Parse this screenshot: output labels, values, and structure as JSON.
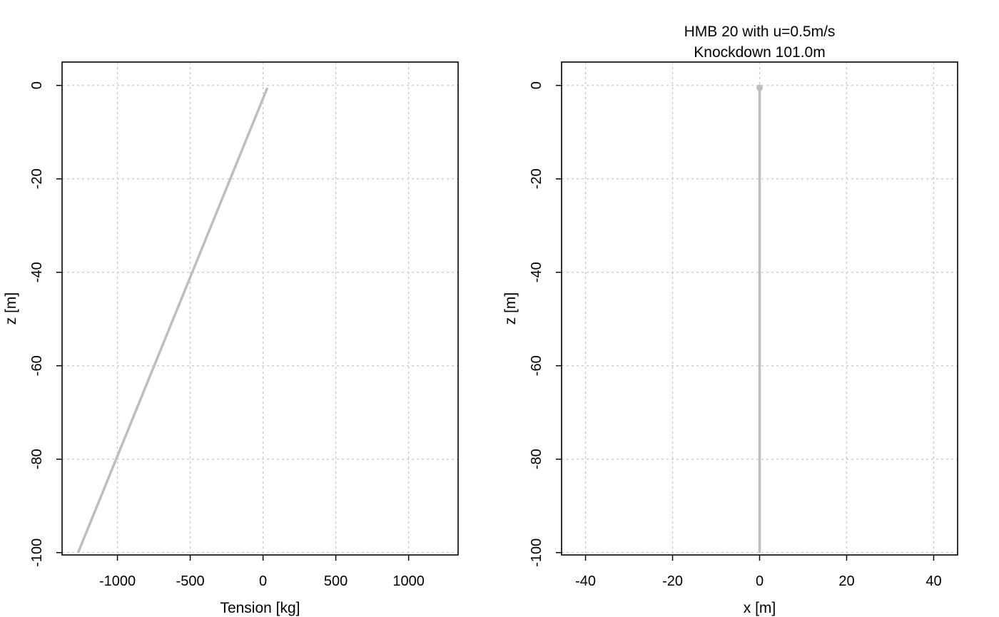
{
  "chart_data": [
    {
      "type": "line",
      "title": "",
      "xlabel": "Tension [kg]",
      "ylabel": "z [m]",
      "xlim": [
        -1380,
        1340
      ],
      "ylim": [
        -100.5,
        5
      ],
      "xticks": [
        -1000,
        -500,
        0,
        500,
        1000
      ],
      "xtick_labels": [
        "-1000",
        "-500",
        "0",
        "500",
        "1000"
      ],
      "yticks": [
        0,
        -20,
        -40,
        -60,
        -80,
        -100
      ],
      "ytick_labels": [
        "0",
        "-20",
        "-40",
        "-60",
        "-80",
        "-100"
      ],
      "grid": true,
      "series": [
        {
          "color": "#bebebe",
          "x": [
            30,
            -1270
          ],
          "y": [
            -0.5,
            -100
          ]
        }
      ]
    },
    {
      "type": "line",
      "title": "HMB 20 with u=0.5m/s\nKnockdown 101.0m",
      "title_lines": [
        "HMB 20 with u=0.5m/s",
        "Knockdown 101.0m"
      ],
      "xlabel": "x [m]",
      "ylabel": "z [m]",
      "xlim": [
        -45.5,
        45.5
      ],
      "ylim": [
        -100.5,
        5
      ],
      "xticks": [
        -40,
        -20,
        0,
        20,
        40
      ],
      "xtick_labels": [
        "-40",
        "-20",
        "0",
        "20",
        "40"
      ],
      "yticks": [
        0,
        -20,
        -40,
        -60,
        -80,
        -100
      ],
      "ytick_labels": [
        "0",
        "-20",
        "-40",
        "-60",
        "-80",
        "-100"
      ],
      "grid": true,
      "series": [
        {
          "color": "#bebebe",
          "x": [
            0,
            0
          ],
          "y": [
            -0.5,
            -100
          ],
          "top_marker": true
        }
      ]
    }
  ]
}
